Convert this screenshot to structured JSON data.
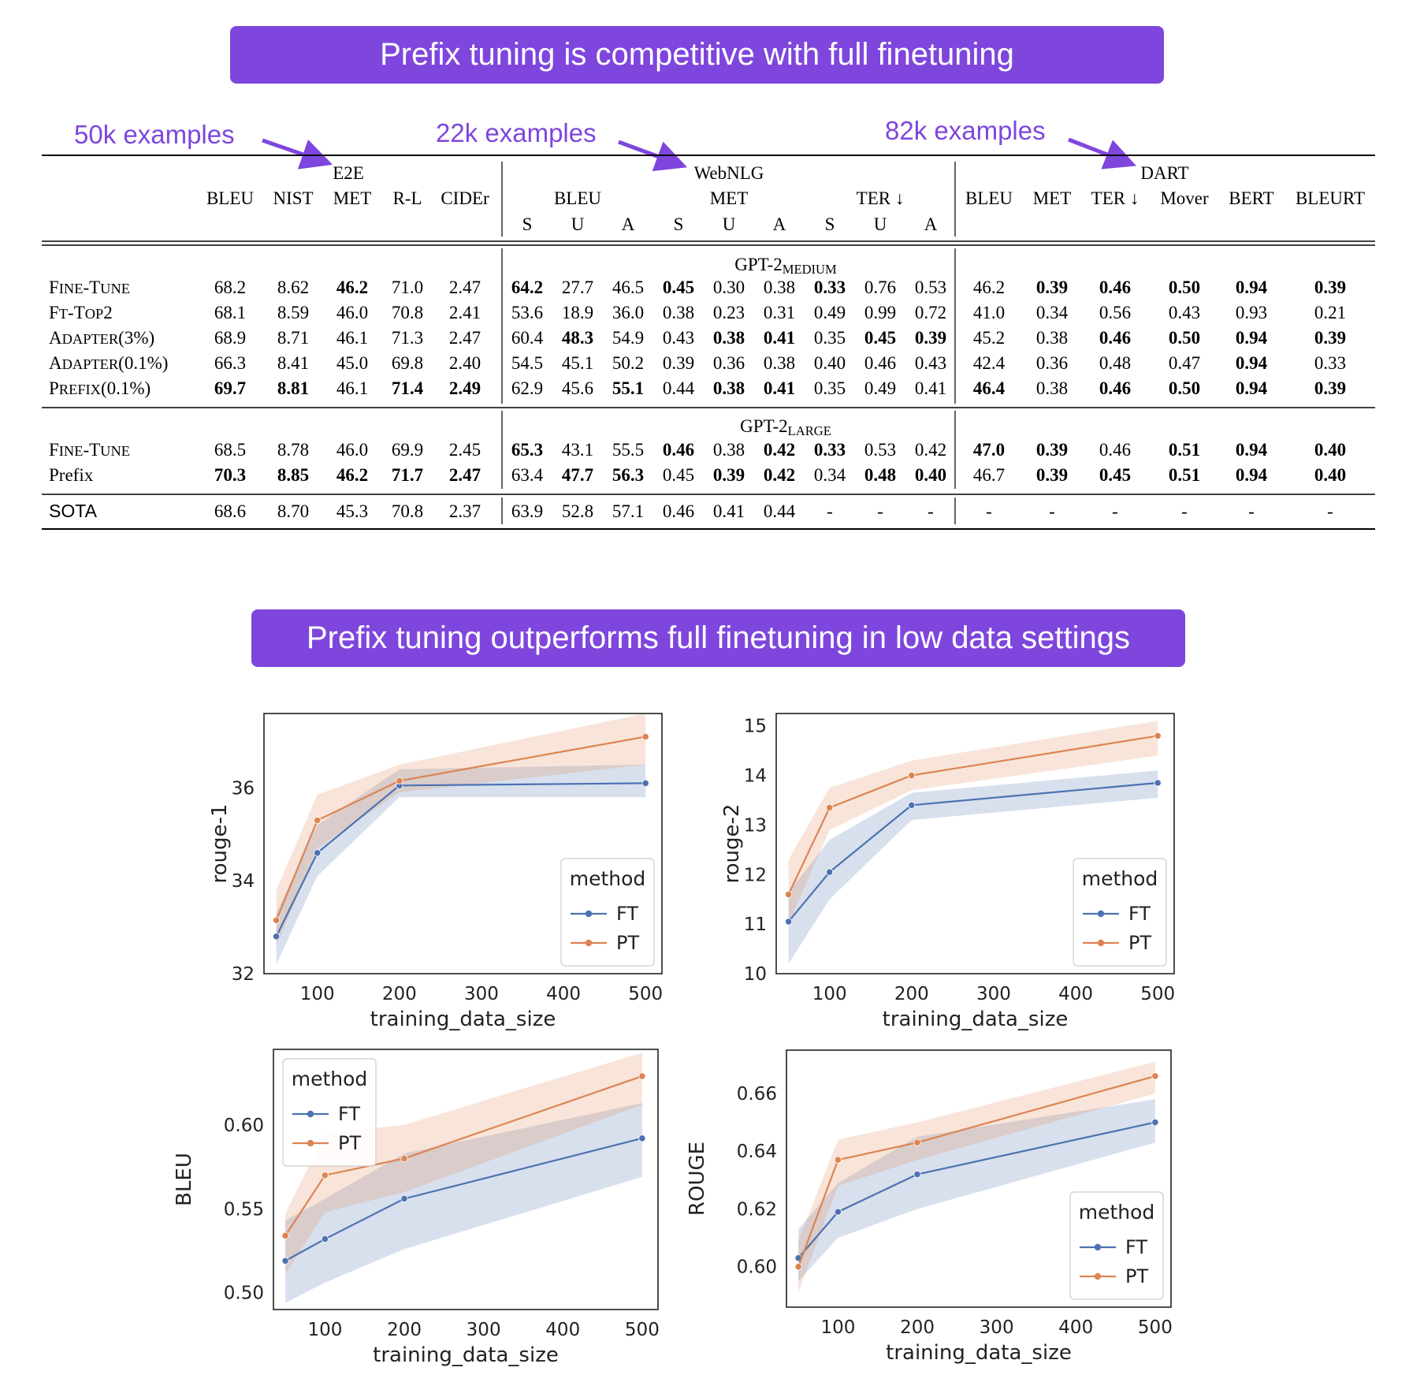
{
  "banners": {
    "top": "Prefix tuning is competitive with full finetuning",
    "bottom": "Prefix tuning outperforms full finetuning in low data settings"
  },
  "annotations": [
    "50k examples",
    "22k examples",
    "82k examples"
  ],
  "colors": {
    "accent": "#7e46dd",
    "ft": "#4c72b0",
    "pt": "#dd8452"
  },
  "table": {
    "groups": [
      "E2E",
      "WebNLG",
      "DART"
    ],
    "e2e_columns": [
      "BLEU",
      "NIST",
      "MET",
      "R-L",
      "CIDEr"
    ],
    "webnlg_columns": [
      "BLEU",
      "MET",
      "TER ↓"
    ],
    "webnlg_subcolumns": [
      "S",
      "U",
      "A"
    ],
    "dart_columns": [
      "BLEU",
      "MET",
      "TER ↓",
      "Mover",
      "BERT",
      "BLEURT"
    ],
    "sections": [
      {
        "header_main": "GPT-2",
        "header_sub": "MEDIUM",
        "rows": [
          {
            "method": "FINE-TUNE",
            "values": [
              "68.2",
              "8.62",
              "46.2",
              "71.0",
              "2.47",
              "64.2",
              "27.7",
              "46.5",
              "0.45",
              "0.30",
              "0.38",
              "0.33",
              "0.76",
              "0.53",
              "46.2",
              "0.39",
              "0.46",
              "0.50",
              "0.94",
              "0.39"
            ],
            "bold": [
              2,
              5,
              8,
              11,
              15,
              16,
              17,
              18,
              19
            ]
          },
          {
            "method": "FT-TOP2",
            "values": [
              "68.1",
              "8.59",
              "46.0",
              "70.8",
              "2.41",
              "53.6",
              "18.9",
              "36.0",
              "0.38",
              "0.23",
              "0.31",
              "0.49",
              "0.99",
              "0.72",
              "41.0",
              "0.34",
              "0.56",
              "0.43",
              "0.93",
              "0.21"
            ],
            "bold": []
          },
          {
            "method": "ADAPTER(3%)",
            "values": [
              "68.9",
              "8.71",
              "46.1",
              "71.3",
              "2.47",
              "60.4",
              "48.3",
              "54.9",
              "0.43",
              "0.38",
              "0.41",
              "0.35",
              "0.45",
              "0.39",
              "45.2",
              "0.38",
              "0.46",
              "0.50",
              "0.94",
              "0.39"
            ],
            "bold": [
              6,
              9,
              10,
              12,
              13,
              16,
              17,
              18,
              19
            ]
          },
          {
            "method": "ADAPTER(0.1%)",
            "values": [
              "66.3",
              "8.41",
              "45.0",
              "69.8",
              "2.40",
              "54.5",
              "45.1",
              "50.2",
              "0.39",
              "0.36",
              "0.38",
              "0.40",
              "0.46",
              "0.43",
              "42.4",
              "0.36",
              "0.48",
              "0.47",
              "0.94",
              "0.33"
            ],
            "bold": [
              18
            ]
          },
          {
            "method": "PREFIX(0.1%)",
            "values": [
              "69.7",
              "8.81",
              "46.1",
              "71.4",
              "2.49",
              "62.9",
              "45.6",
              "55.1",
              "0.44",
              "0.38",
              "0.41",
              "0.35",
              "0.49",
              "0.41",
              "46.4",
              "0.38",
              "0.46",
              "0.50",
              "0.94",
              "0.39"
            ],
            "bold": [
              0,
              1,
              3,
              4,
              7,
              9,
              10,
              14,
              16,
              17,
              18,
              19
            ]
          }
        ]
      },
      {
        "header_main": "GPT-2",
        "header_sub": "LARGE",
        "rows": [
          {
            "method": "FINE-TUNE",
            "values": [
              "68.5",
              "8.78",
              "46.0",
              "69.9",
              "2.45",
              "65.3",
              "43.1",
              "55.5",
              "0.46",
              "0.38",
              "0.42",
              "0.33",
              "0.53",
              "0.42",
              "47.0",
              "0.39",
              "0.46",
              "0.51",
              "0.94",
              "0.40"
            ],
            "bold": [
              5,
              8,
              10,
              11,
              14,
              15,
              17,
              18,
              19
            ]
          },
          {
            "method": "Prefix",
            "values": [
              "70.3",
              "8.85",
              "46.2",
              "71.7",
              "2.47",
              "63.4",
              "47.7",
              "56.3",
              "0.45",
              "0.39",
              "0.42",
              "0.34",
              "0.48",
              "0.40",
              "46.7",
              "0.39",
              "0.45",
              "0.51",
              "0.94",
              "0.40"
            ],
            "bold": [
              0,
              1,
              2,
              3,
              4,
              6,
              7,
              9,
              10,
              12,
              13,
              15,
              16,
              17,
              18,
              19
            ]
          }
        ]
      }
    ],
    "sota": {
      "method": "SOTA",
      "values": [
        "68.6",
        "8.70",
        "45.3",
        "70.8",
        "2.37",
        "63.9",
        "52.8",
        "57.1",
        "0.46",
        "0.41",
        "0.44",
        "-",
        "-",
        "-",
        "-",
        "-",
        "-",
        "-",
        "-",
        "-"
      ]
    }
  },
  "chart_data": [
    {
      "type": "line",
      "xlabel": "training_data_size",
      "ylabel": "rouge-1",
      "xlim": [
        35,
        520
      ],
      "ylim": [
        32,
        37.6
      ],
      "xticks": [
        100,
        200,
        300,
        400,
        500
      ],
      "yticks": [
        32,
        34,
        36
      ],
      "legend": {
        "title": "method",
        "position": "lower-right"
      },
      "series": [
        {
          "name": "FT",
          "x": [
            50,
            100,
            200,
            500
          ],
          "y": [
            32.8,
            34.6,
            36.05,
            36.1
          ],
          "band_low": [
            32.2,
            34.1,
            35.8,
            35.8
          ],
          "band_high": [
            33.3,
            35.2,
            36.4,
            36.5
          ]
        },
        {
          "name": "PT",
          "x": [
            50,
            100,
            200,
            500
          ],
          "y": [
            33.15,
            35.3,
            36.15,
            37.1
          ],
          "band_low": [
            32.6,
            34.7,
            35.9,
            36.5
          ],
          "band_high": [
            33.8,
            35.85,
            36.5,
            37.6
          ]
        }
      ]
    },
    {
      "type": "line",
      "xlabel": "training_data_size",
      "ylabel": "rouge-2",
      "xlim": [
        35,
        520
      ],
      "ylim": [
        10,
        15.25
      ],
      "xticks": [
        100,
        200,
        300,
        400,
        500
      ],
      "yticks": [
        10,
        11,
        12,
        13,
        14,
        15
      ],
      "legend": {
        "title": "method",
        "position": "lower-right"
      },
      "series": [
        {
          "name": "FT",
          "x": [
            50,
            100,
            200,
            500
          ],
          "y": [
            11.05,
            12.05,
            13.4,
            13.85
          ],
          "band_low": [
            10.2,
            11.5,
            13.1,
            13.55
          ],
          "band_high": [
            11.65,
            12.7,
            13.65,
            14.1
          ]
        },
        {
          "name": "PT",
          "x": [
            50,
            100,
            200,
            500
          ],
          "y": [
            11.6,
            13.35,
            14.0,
            14.8
          ],
          "band_low": [
            11.0,
            12.9,
            13.7,
            14.4
          ],
          "band_high": [
            12.3,
            13.75,
            14.3,
            15.1
          ]
        }
      ]
    },
    {
      "type": "line",
      "xlabel": "training_data_size",
      "ylabel": "BLEU",
      "xlim": [
        35,
        520
      ],
      "ylim": [
        0.49,
        0.645
      ],
      "xticks": [
        100,
        200,
        300,
        400,
        500
      ],
      "yticks": [
        0.5,
        0.55,
        0.6
      ],
      "legend": {
        "title": "method",
        "position": "upper-left"
      },
      "series": [
        {
          "name": "FT",
          "x": [
            50,
            100,
            200,
            500
          ],
          "y": [
            0.519,
            0.532,
            0.556,
            0.592
          ],
          "band_low": [
            0.494,
            0.506,
            0.526,
            0.569
          ],
          "band_high": [
            0.543,
            0.556,
            0.583,
            0.613
          ]
        },
        {
          "name": "PT",
          "x": [
            50,
            100,
            200,
            500
          ],
          "y": [
            0.534,
            0.57,
            0.58,
            0.629
          ],
          "band_low": [
            0.511,
            0.548,
            0.56,
            0.612
          ],
          "band_high": [
            0.547,
            0.595,
            0.6,
            0.643
          ]
        }
      ]
    },
    {
      "type": "line",
      "xlabel": "training_data_size",
      "ylabel": "ROUGE",
      "xlim": [
        35,
        520
      ],
      "ylim": [
        0.586,
        0.675
      ],
      "xticks": [
        100,
        200,
        300,
        400,
        500
      ],
      "yticks": [
        0.6,
        0.62,
        0.64,
        0.66
      ],
      "legend": {
        "title": "method",
        "position": "lower-right"
      },
      "series": [
        {
          "name": "FT",
          "x": [
            50,
            100,
            200,
            500
          ],
          "y": [
            0.603,
            0.619,
            0.632,
            0.65
          ],
          "band_low": [
            0.595,
            0.61,
            0.62,
            0.643
          ],
          "band_high": [
            0.613,
            0.629,
            0.645,
            0.658
          ]
        },
        {
          "name": "PT",
          "x": [
            50,
            100,
            200,
            500
          ],
          "y": [
            0.6,
            0.637,
            0.643,
            0.666
          ],
          "band_low": [
            0.591,
            0.628,
            0.637,
            0.66
          ],
          "band_high": [
            0.609,
            0.644,
            0.65,
            0.671
          ]
        }
      ]
    }
  ]
}
